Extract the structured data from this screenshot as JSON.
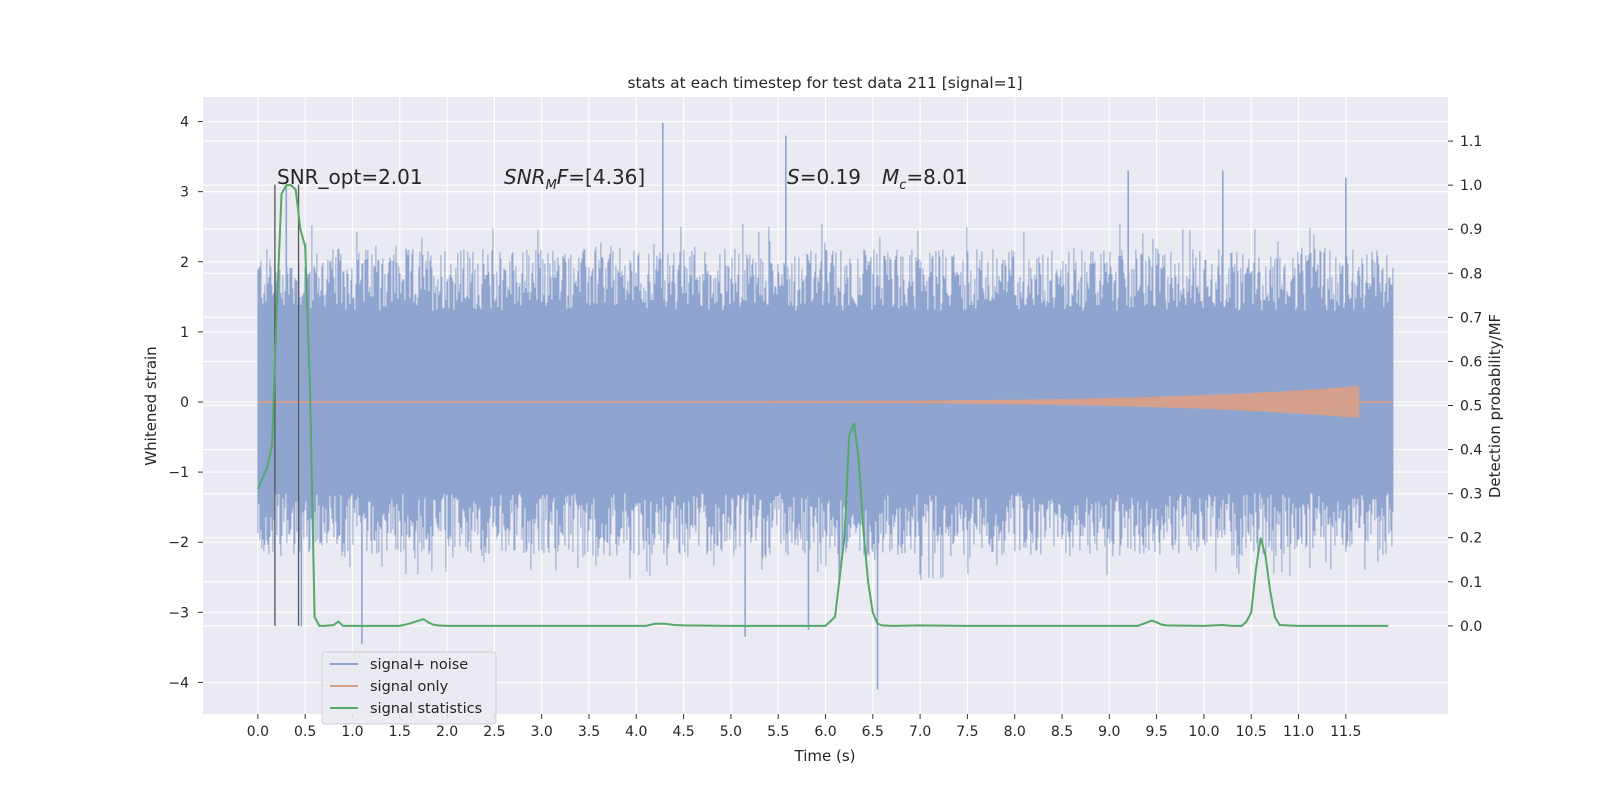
{
  "chart_data": {
    "type": "line",
    "title": "stats at each timestep for test data 211 [signal=1]",
    "xlabel": "Time (s)",
    "ylabel_left": "Whitened strain",
    "ylabel_right": "Detection probability/MF",
    "x_ticks": [
      "0.0",
      "0.5",
      "1.0",
      "1.5",
      "2.0",
      "2.5",
      "3.0",
      "3.5",
      "4.0",
      "4.5",
      "5.0",
      "5.5",
      "6.0",
      "6.5",
      "7.0",
      "7.5",
      "8.0",
      "8.5",
      "9.0",
      "9.5",
      "10.0",
      "10.5",
      "11.0",
      "11.5"
    ],
    "y_left_ticks": [
      -4,
      -3,
      -2,
      -1,
      0,
      1,
      2,
      3,
      4
    ],
    "y_right_ticks": [
      "0.0",
      "0.1",
      "0.2",
      "0.3",
      "0.4",
      "0.5",
      "0.6",
      "0.7",
      "0.8",
      "0.9",
      "1.0",
      "1.1"
    ],
    "xlim": [
      -0.58,
      12.58
    ],
    "ylim_left": [
      -4.45,
      4.35
    ],
    "ylim_right": [
      -0.2,
      1.2
    ],
    "grid": true,
    "legend_position": "lower-left",
    "annotations": [
      {
        "text": "SNR_opt=2.01",
        "x": 0.2,
        "y": 3.1
      },
      {
        "text": "SNR_MF=[4.36]",
        "x": 2.6,
        "y": 3.1
      },
      {
        "text": "S=0.19",
        "x": 5.6,
        "y": 3.1
      },
      {
        "text": "M_c=8.01",
        "x": 6.6,
        "y": 3.1
      }
    ],
    "vertical_markers": [
      0.18,
      0.43
    ],
    "series": [
      {
        "name": "signal+ noise",
        "axis": "left",
        "color": "#8fa5cf",
        "x_range": [
          0.0,
          12.0
        ],
        "band_low": -1.9,
        "band_high": 1.9,
        "spikes": [
          [
            0.3,
            3.1
          ],
          [
            0.46,
            -3.2
          ],
          [
            1.1,
            -3.45
          ],
          [
            4.28,
            3.98
          ],
          [
            5.58,
            3.8
          ],
          [
            5.82,
            -3.25
          ],
          [
            5.15,
            -3.35
          ],
          [
            6.55,
            -4.1
          ],
          [
            9.2,
            3.3
          ],
          [
            10.2,
            3.3
          ],
          [
            11.5,
            3.2
          ]
        ]
      },
      {
        "name": "signal only",
        "axis": "left",
        "color": "#dd9e85",
        "chirp_end": 11.65,
        "peak_amplitude": 0.22
      },
      {
        "name": "signal statistics",
        "axis": "right",
        "color": "#55a868",
        "x": [
          0.0,
          0.1,
          0.15,
          0.2,
          0.25,
          0.3,
          0.35,
          0.4,
          0.45,
          0.5,
          0.55,
          0.6,
          0.65,
          0.7,
          0.8,
          0.85,
          0.9,
          0.95,
          1.0,
          1.5,
          1.6,
          1.7,
          1.75,
          1.8,
          1.85,
          1.9,
          2.0,
          2.1,
          2.5,
          4.1,
          4.2,
          4.3,
          4.4,
          4.5,
          5.0,
          5.5,
          5.8,
          6.0,
          6.1,
          6.2,
          6.25,
          6.3,
          6.35,
          6.4,
          6.45,
          6.5,
          6.55,
          6.6,
          6.7,
          7.0,
          7.5,
          8.0,
          9.0,
          9.3,
          9.4,
          9.45,
          9.5,
          9.55,
          9.6,
          10.0,
          10.1,
          10.2,
          10.3,
          10.4,
          10.45,
          10.5,
          10.55,
          10.6,
          10.65,
          10.7,
          10.75,
          10.8,
          11.0,
          11.5,
          11.95
        ],
        "y": [
          0.31,
          0.36,
          0.41,
          0.72,
          0.98,
          1.0,
          1.0,
          0.99,
          0.9,
          0.86,
          0.55,
          0.02,
          0.0,
          0.0,
          0.002,
          0.01,
          0.0,
          0.0,
          0.0,
          0.0,
          0.005,
          0.012,
          0.015,
          0.008,
          0.003,
          0.001,
          0.0,
          0.0,
          0.0,
          0.0,
          0.005,
          0.005,
          0.002,
          0.001,
          0.0,
          0.0,
          0.0,
          0.0,
          0.02,
          0.2,
          0.43,
          0.46,
          0.38,
          0.22,
          0.1,
          0.03,
          0.005,
          0.001,
          0.0,
          0.001,
          0.0,
          0.0,
          0.0,
          0.0,
          0.008,
          0.012,
          0.008,
          0.003,
          0.001,
          0.0,
          0.001,
          0.002,
          0.0,
          0.0,
          0.01,
          0.03,
          0.13,
          0.2,
          0.16,
          0.08,
          0.02,
          0.002,
          0.0,
          0.0,
          0.0
        ]
      }
    ]
  }
}
